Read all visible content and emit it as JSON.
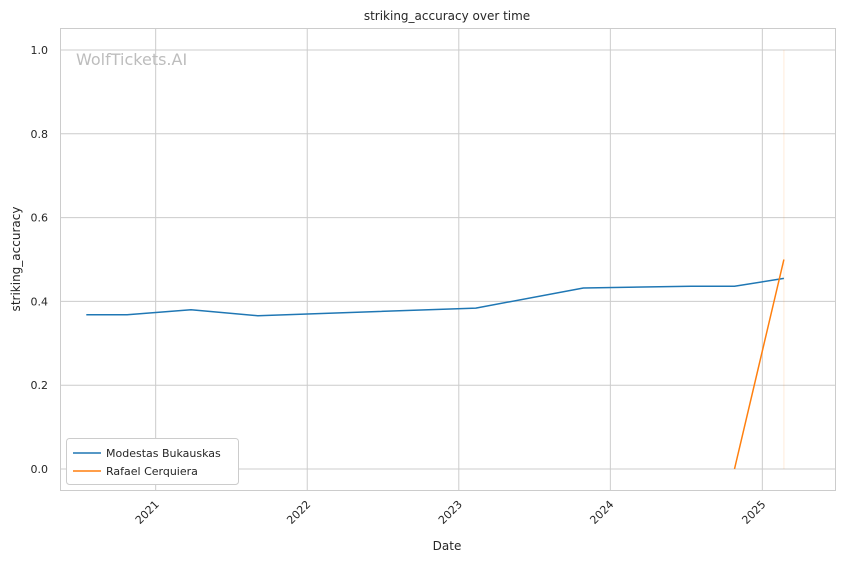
{
  "chart_data": {
    "type": "line",
    "title": "striking_accuracy over time",
    "xlabel": "Date",
    "ylabel": "striking_accuracy",
    "watermark": "WolfTickets.AI",
    "x_ticks": [
      "2021",
      "2022",
      "2023",
      "2024",
      "2025"
    ],
    "y_ticks": [
      "0.0",
      "0.2",
      "0.4",
      "0.6",
      "0.8",
      "1.0"
    ],
    "xlim": [
      "2020-05-18",
      "2025-06-25"
    ],
    "ylim": [
      -0.05,
      1.05
    ],
    "grid": true,
    "legend_position": "lower-left",
    "series": [
      {
        "name": "Modestas Bukauskas",
        "color": "#1f77b4",
        "points": [
          {
            "x": "2020-07-18",
            "y": 0.368
          },
          {
            "x": "2020-10-24",
            "y": 0.368
          },
          {
            "x": "2021-03-27",
            "y": 0.38
          },
          {
            "x": "2021-09-04",
            "y": 0.366
          },
          {
            "x": "2023-02-11",
            "y": 0.384
          },
          {
            "x": "2023-10-28",
            "y": 0.432
          },
          {
            "x": "2024-07-13",
            "y": 0.436
          },
          {
            "x": "2024-10-26",
            "y": 0.436
          },
          {
            "x": "2025-02-22",
            "y": 0.455
          }
        ]
      },
      {
        "name": "Rafael Cerquiera",
        "color": "#ff7f0e",
        "points": [
          {
            "x": "2024-10-26",
            "y": 0.0
          },
          {
            "x": "2025-02-22",
            "y": 0.5
          }
        ]
      }
    ],
    "reference_lines": [
      {
        "x": "2025-02-22",
        "y_from": 0.0,
        "y_to": 1.0,
        "color": "#ff7f0e",
        "opacity": 0.15
      }
    ]
  }
}
